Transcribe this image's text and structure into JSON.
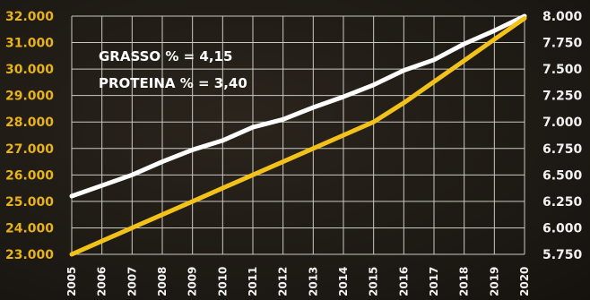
{
  "chart_data": {
    "type": "line",
    "title": "",
    "xlabel": "",
    "ylabel": "",
    "categories": [
      "2005",
      "2006",
      "2007",
      "2008",
      "2009",
      "2010",
      "2011",
      "2012",
      "2013",
      "2014",
      "2015",
      "2016",
      "2017",
      "2018",
      "2019",
      "2020"
    ],
    "y_left": {
      "ylim": [
        23000,
        32000
      ],
      "ticks": [
        "23.000",
        "24.000",
        "25.000",
        "26.000",
        "27.000",
        "28.000",
        "29.000",
        "30.000",
        "31.000",
        "32.000"
      ],
      "color": "#e8b21a"
    },
    "y_right": {
      "ylim": [
        5750,
        8000
      ],
      "ticks": [
        "5.750",
        "6.000",
        "6.250",
        "6.500",
        "6.750",
        "7.000",
        "7.250",
        "7.500",
        "7.750",
        "8.000"
      ],
      "color": "#f2f2f2"
    },
    "series": [
      {
        "axis": "left",
        "color": "#ffffff",
        "values": [
          25200,
          25600,
          26000,
          26500,
          26950,
          27300,
          27800,
          28100,
          28550,
          28950,
          29400,
          29950,
          30350,
          30950,
          31450,
          32000
        ]
      },
      {
        "axis": "right",
        "color": "#f2c21a",
        "values": [
          5750,
          5875,
          6000,
          6125,
          6250,
          6375,
          6500,
          6625,
          6750,
          6875,
          7000,
          7180,
          7380,
          7580,
          7780,
          7980
        ]
      }
    ],
    "annotations": [
      "GRASSO % = 4,15",
      "PROTEINA % = 3,40"
    ],
    "grid": true,
    "legend": "none"
  }
}
